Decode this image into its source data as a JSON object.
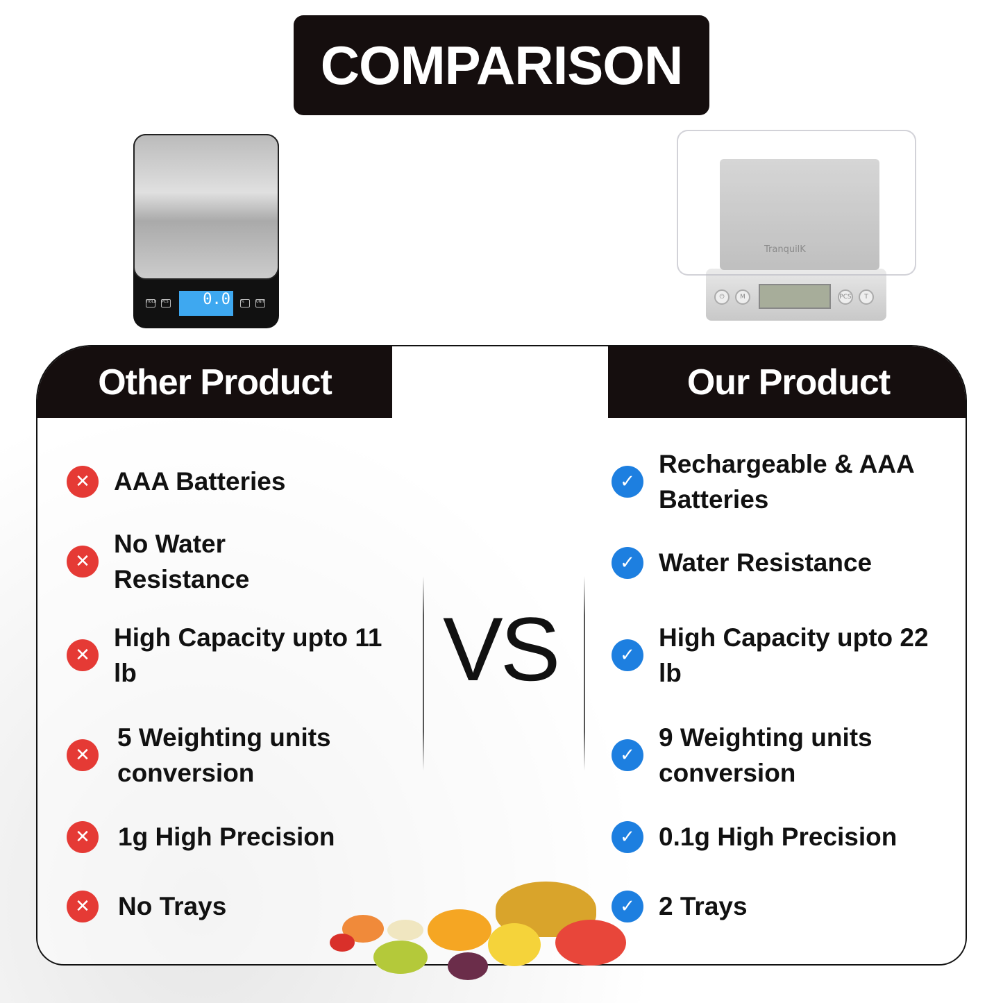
{
  "title": "COMPARISON",
  "other": {
    "heading": "Other Product",
    "display": "0.0",
    "buttons": [
      "HOLD",
      "PCS",
      "%",
      "UNIT"
    ],
    "features": [
      "AAA Batteries",
      "No Water Resistance",
      "High Capacity upto 11 lb",
      "5 Weighting units conversion",
      "1g High Precision",
      "No Trays"
    ]
  },
  "ours": {
    "heading": "Our Product",
    "brand": "TranquilK",
    "buttons": [
      "⏻",
      "M",
      "PCS",
      "T"
    ],
    "features": [
      "Rechargeable & AAA Batteries",
      "Water Resistance",
      "High Capacity upto 22 lb",
      "9 Weighting units conversion",
      "0.1g High Precision",
      "2 Trays"
    ]
  },
  "vs": "VS",
  "colors": {
    "cross": "#e53a35",
    "check": "#1d7fe0",
    "header": "#150e0e"
  }
}
